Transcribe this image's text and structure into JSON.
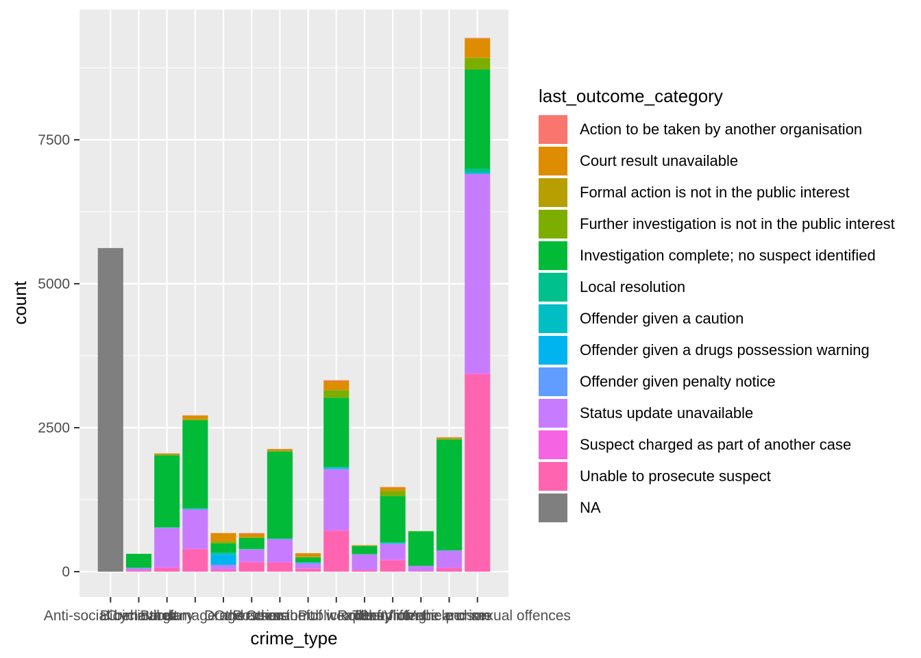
{
  "chart_data": {
    "type": "bar",
    "stacked": true,
    "xlabel": "crime_type",
    "ylabel": "count",
    "ylim": [
      0,
      9300
    ],
    "yticks": [
      0,
      2500,
      5000,
      7500
    ],
    "grid": true,
    "legend_position": "right",
    "legend_title": "last_outcome_category",
    "categories": [
      "Anti-social behaviour",
      "Bicycle theft",
      "Burglary",
      "Criminal damage and arson",
      "Drugs",
      "Other crime",
      "Other theft",
      "Possession of weapons",
      "Public order",
      "Robbery",
      "Shoplifting",
      "Theft from the person",
      "Vehicle crime",
      "Violence and sexual offences"
    ],
    "series": [
      {
        "name": "Action to be taken by another organisation",
        "color": "#F8766D",
        "values": [
          0,
          0,
          5,
          5,
          0,
          10,
          5,
          0,
          15,
          0,
          5,
          0,
          5,
          10
        ]
      },
      {
        "name": "Court result unavailable",
        "color": "#DE8C00",
        "values": [
          0,
          0,
          15,
          60,
          140,
          60,
          25,
          60,
          150,
          10,
          60,
          0,
          20,
          330
        ]
      },
      {
        "name": "Formal action is not in the public interest",
        "color": "#B79F00",
        "values": [
          0,
          0,
          5,
          5,
          10,
          5,
          5,
          5,
          10,
          0,
          5,
          0,
          5,
          10
        ]
      },
      {
        "name": "Further investigation is not in the public interest",
        "color": "#7CAE00",
        "values": [
          0,
          0,
          10,
          20,
          30,
          10,
          10,
          10,
          130,
          5,
          90,
          5,
          10,
          200
        ]
      },
      {
        "name": "Investigation complete; no suspect identified",
        "color": "#00BA38",
        "values": [
          0,
          240,
          1250,
          1520,
          160,
          190,
          1510,
          80,
          1200,
          140,
          800,
          600,
          1920,
          1720
        ]
      },
      {
        "name": "Local resolution",
        "color": "#00C08B",
        "values": [
          0,
          5,
          5,
          15,
          20,
          5,
          5,
          5,
          15,
          5,
          10,
          0,
          5,
          60
        ]
      },
      {
        "name": "Offender given a caution",
        "color": "#00BFC4",
        "values": [
          0,
          0,
          5,
          10,
          15,
          5,
          5,
          5,
          15,
          0,
          10,
          0,
          5,
          30
        ]
      },
      {
        "name": "Offender given a drugs possession warning",
        "color": "#00B4F0",
        "values": [
          0,
          0,
          0,
          0,
          170,
          0,
          0,
          10,
          5,
          0,
          0,
          0,
          0,
          0
        ]
      },
      {
        "name": "Offender given penalty notice",
        "color": "#619CFF",
        "values": [
          0,
          5,
          0,
          0,
          20,
          5,
          5,
          0,
          15,
          0,
          10,
          0,
          0,
          5
        ]
      },
      {
        "name": "Status update unavailable",
        "color": "#C77CFF",
        "values": [
          0,
          40,
          680,
          680,
          70,
          210,
          400,
          90,
          1050,
          270,
          270,
          90,
          300,
          3460
        ]
      },
      {
        "name": "Suspect charged as part of another case",
        "color": "#F564E3",
        "values": [
          0,
          0,
          20,
          10,
          5,
          10,
          5,
          5,
          10,
          5,
          10,
          0,
          5,
          15
        ]
      },
      {
        "name": "Unable to prosecute suspect",
        "color": "#FF64B0",
        "values": [
          0,
          20,
          60,
          390,
          30,
          160,
          155,
          50,
          710,
          25,
          200,
          10,
          60,
          3430
        ]
      },
      {
        "name": "NA",
        "color": "#7F7F7F",
        "values": [
          5620,
          0,
          0,
          0,
          0,
          0,
          0,
          0,
          0,
          0,
          0,
          0,
          0,
          0
        ]
      }
    ]
  }
}
